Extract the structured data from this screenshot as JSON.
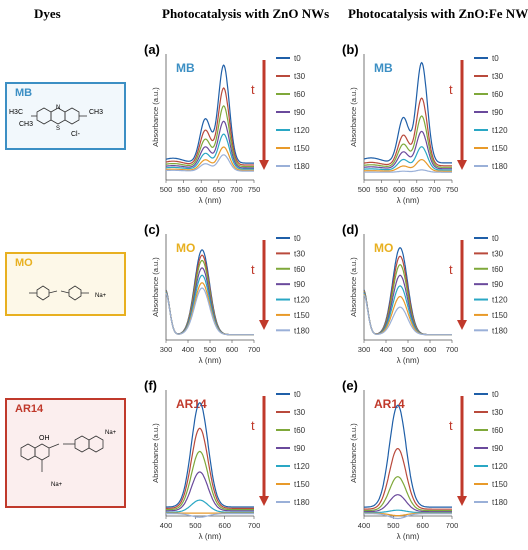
{
  "headers": {
    "dyes": "Dyes",
    "zno": "Photocatalysis with ZnO NWs",
    "znofe": "Photocatalysis with ZnO:Fe NWs"
  },
  "dyes": [
    {
      "key": "mb",
      "label": "MB",
      "border_color": "#3c8fc4",
      "label_color": "#3c8fc4",
      "bg": "#f2f8fc",
      "formula_labels": [
        "H3C",
        "CH3",
        "CH3",
        "Cl-",
        "S",
        "N"
      ]
    },
    {
      "key": "mo",
      "label": "MO",
      "border_color": "#e8b020",
      "label_color": "#e8b020",
      "bg": "#fdf8e8",
      "formula_labels": [
        "Na+"
      ]
    },
    {
      "key": "ar14",
      "label": "AR14",
      "border_color": "#c0392b",
      "label_color": "#c0392b",
      "bg": "#fbeeee",
      "formula_labels": [
        "OH",
        "Na+",
        "Na+"
      ]
    }
  ],
  "series_colors": [
    "#1f5fa8",
    "#b94a3c",
    "#7fa83a",
    "#6a4a9c",
    "#2aa7c4",
    "#e89a2a",
    "#9ab0d8"
  ],
  "legend_labels": [
    "t0",
    "t30",
    "t60",
    "t90",
    "t120",
    "t150",
    "t180"
  ],
  "arrow_label": "t",
  "ylabel": "Absorbance (a.u.)",
  "xlabel": "λ (nm)",
  "chart_data": [
    {
      "id": "a",
      "panel_label": "(a)",
      "dye_label": "MB",
      "dye_color": "#3c8fc4",
      "type": "line",
      "xlim": [
        500,
        750
      ],
      "xticks": [
        500,
        550,
        600,
        650,
        700,
        750
      ],
      "ylim": [
        0,
        1.0
      ],
      "model": "mb",
      "peaks": [
        0.9,
        0.72,
        0.58,
        0.46,
        0.36,
        0.26,
        0.2
      ]
    },
    {
      "id": "b",
      "panel_label": "(b)",
      "dye_label": "MB",
      "dye_color": "#3c8fc4",
      "type": "line",
      "xlim": [
        500,
        750
      ],
      "xticks": [
        500,
        550,
        600,
        650,
        700,
        750
      ],
      "ylim": [
        0,
        1.0
      ],
      "model": "mb",
      "peaks": [
        0.92,
        0.64,
        0.5,
        0.38,
        0.26,
        0.16,
        0.08
      ]
    },
    {
      "id": "c",
      "panel_label": "(c)",
      "dye_label": "MO",
      "dye_color": "#e8b020",
      "type": "line",
      "xlim": [
        300,
        700
      ],
      "xticks": [
        300,
        400,
        500,
        600,
        700
      ],
      "ylim": [
        0,
        1.0
      ],
      "model": "mo",
      "peaks": [
        0.86,
        0.81,
        0.76,
        0.69,
        0.62,
        0.55,
        0.5
      ]
    },
    {
      "id": "d",
      "panel_label": "(d)",
      "dye_label": "MO",
      "dye_color": "#e8b020",
      "type": "line",
      "xlim": [
        300,
        700
      ],
      "xticks": [
        300,
        400,
        500,
        600,
        700
      ],
      "ylim": [
        0,
        1.0
      ],
      "model": "mo",
      "peaks": [
        0.88,
        0.8,
        0.72,
        0.62,
        0.52,
        0.42,
        0.32
      ]
    },
    {
      "id": "f",
      "panel_label": "(f)",
      "dye_label": "AR14",
      "dye_color": "#c0392b",
      "type": "line",
      "xlim": [
        400,
        700
      ],
      "xticks": [
        400,
        500,
        600,
        700
      ],
      "ylim": [
        0,
        1.0
      ],
      "model": "ar14",
      "peaks": [
        0.92,
        0.72,
        0.54,
        0.38,
        0.16,
        0.06,
        0.03
      ]
    },
    {
      "id": "e",
      "panel_label": "(e)",
      "dye_label": "AR14",
      "dye_color": "#c0392b",
      "type": "line",
      "xlim": [
        400,
        700
      ],
      "xticks": [
        400,
        500,
        600,
        700
      ],
      "ylim": [
        0,
        1.0
      ],
      "model": "ar14",
      "peaks": [
        0.9,
        0.56,
        0.34,
        0.2,
        0.08,
        0.04,
        0.02
      ]
    }
  ]
}
